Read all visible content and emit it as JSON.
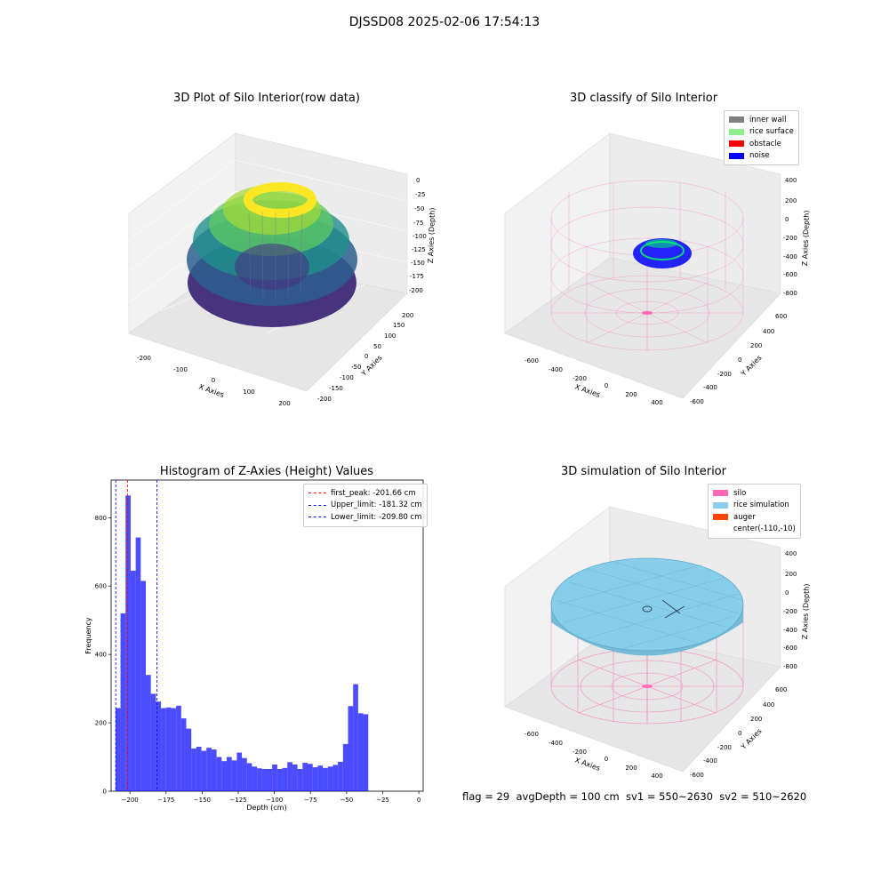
{
  "figure": {
    "suptitle": "DJSSD08 2025-02-06 17:54:13",
    "footer": "flag = 29  avgDepth = 100 cm  sv1 = 550~2630  sv2 = 510~2620"
  },
  "panels": {
    "raw": {
      "title": "3D Plot of Silo Interior(row data)",
      "xlabel": "X Axies",
      "ylabel": "Y Axies",
      "zlabel": "Z Axies (Depth)",
      "xticks": [
        "-200",
        "-100",
        "0",
        "100",
        "200"
      ],
      "yticks": [
        "200",
        "150",
        "100",
        "50",
        "0",
        "-50",
        "-100",
        "-150",
        "-200"
      ],
      "zticks": [
        "0",
        "-25",
        "-50",
        "-75",
        "-100",
        "-125",
        "-150",
        "-175",
        "-200"
      ]
    },
    "classify": {
      "title": "3D classify of Silo Interior",
      "xlabel": "X Axies",
      "ylabel": "Y Axies",
      "zlabel": "Z Axies (Depth)",
      "xticks": [
        "-600",
        "-400",
        "-200",
        "0",
        "200",
        "400"
      ],
      "yticks": [
        "600",
        "400",
        "200",
        "0",
        "-200",
        "-400",
        "-600"
      ],
      "zticks": [
        "400",
        "200",
        "0",
        "-200",
        "-400",
        "-600",
        "-800"
      ],
      "legend": [
        {
          "label": "inner wall",
          "color": "#808080"
        },
        {
          "label": "rice surface",
          "color": "#90ee90"
        },
        {
          "label": "obstacle",
          "color": "#ff0000"
        },
        {
          "label": "noise",
          "color": "#0000ff"
        }
      ]
    },
    "simulation": {
      "title": "3D simulation of Silo Interior",
      "xlabel": "X Axies",
      "ylabel": "Y Axies",
      "zlabel": "Z Axies (Depth)",
      "xticks": [
        "-600",
        "-400",
        "-200",
        "0",
        "200",
        "400"
      ],
      "yticks": [
        "600",
        "400",
        "200",
        "0",
        "-200",
        "-400",
        "-600"
      ],
      "zticks": [
        "400",
        "200",
        "0",
        "-200",
        "-400",
        "-600",
        "-800"
      ],
      "legend": [
        {
          "label": "silo",
          "color": "#ff69b4"
        },
        {
          "label": "rice simulation",
          "color": "#87ceeb"
        },
        {
          "label": "auger",
          "color": "#ff4500"
        },
        {
          "label": "center(-110,-10)",
          "color": ""
        }
      ]
    }
  },
  "chart_data": {
    "type": "bar",
    "title": "Histogram of Z-Axies (Height) Values",
    "xlabel": "Depth (cm)",
    "ylabel": "Frequency",
    "xlim": [
      -213,
      3
    ],
    "ylim": [
      0,
      910
    ],
    "bar_color": "#0000ff",
    "bin_width": 3.5,
    "bin_start": -210,
    "values": [
      243,
      520,
      865,
      645,
      742,
      615,
      340,
      285,
      262,
      243,
      245,
      243,
      250,
      213,
      183,
      125,
      130,
      118,
      127,
      122,
      100,
      88,
      100,
      90,
      113,
      97,
      82,
      72,
      67,
      65,
      65,
      78,
      65,
      68,
      85,
      78,
      65,
      83,
      80,
      70,
      75,
      68,
      72,
      77,
      86,
      138,
      249,
      313,
      228,
      225
    ],
    "xticks": [
      -200,
      -175,
      -150,
      -125,
      -100,
      -75,
      -50,
      -25,
      0
    ],
    "yticks": [
      0,
      200,
      400,
      600,
      800
    ],
    "lines": [
      {
        "label": "first_peak: -201.66 cm",
        "x": -201.66,
        "color": "#ff0000"
      },
      {
        "label": "Upper_limit: -181.32 cm",
        "x": -181.32,
        "color": "#0000ff"
      },
      {
        "label": "Lower_limit: -209.80 cm",
        "x": -209.8,
        "color": "#0000ff"
      }
    ]
  }
}
